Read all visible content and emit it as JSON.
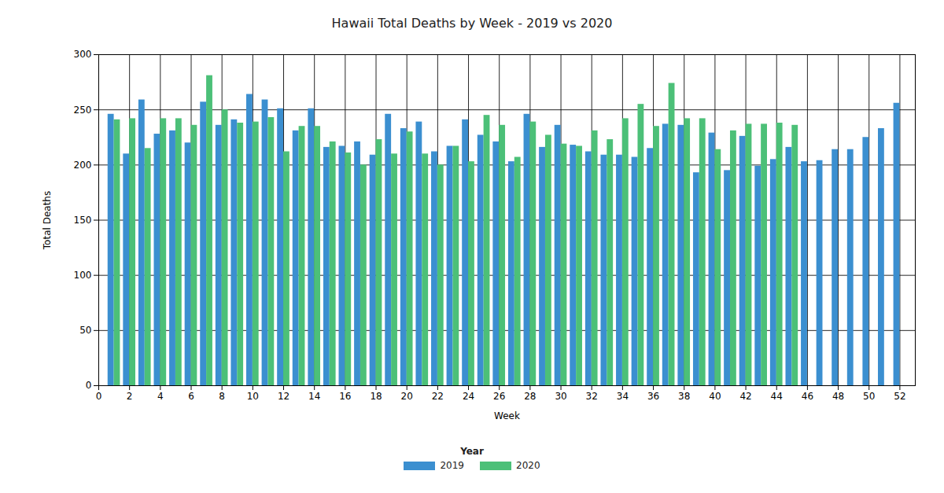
{
  "chart_data": {
    "type": "bar",
    "title": "Hawaii Total Deaths by Week - 2019 vs 2020",
    "x_label": "Week",
    "y_label": "Total Deaths",
    "x": [
      1,
      2,
      3,
      4,
      5,
      6,
      7,
      8,
      9,
      10,
      11,
      12,
      13,
      14,
      15,
      16,
      17,
      18,
      19,
      20,
      21,
      22,
      23,
      24,
      25,
      26,
      27,
      28,
      29,
      30,
      31,
      32,
      33,
      34,
      35,
      36,
      37,
      38,
      39,
      40,
      41,
      42,
      43,
      44,
      45,
      46,
      47,
      48,
      49,
      50,
      51,
      52
    ],
    "series": [
      {
        "name": "2019",
        "color": "#3b8fd0",
        "values": [
          246,
          210,
          259,
          228,
          231,
          220,
          257,
          236,
          241,
          264,
          259,
          251,
          231,
          251,
          216,
          217,
          221,
          209,
          246,
          233,
          239,
          212,
          217,
          241,
          227,
          221,
          203,
          246,
          216,
          236,
          218,
          212,
          209,
          209,
          207,
          215,
          237,
          236,
          193,
          229,
          195,
          226,
          199,
          205,
          216,
          203,
          204,
          214,
          214,
          225,
          233,
          256
        ]
      },
      {
        "name": "2020",
        "color": "#4cc078",
        "values": [
          241,
          242,
          215,
          242,
          242,
          236,
          281,
          250,
          238,
          239,
          243,
          212,
          235,
          235,
          221,
          211,
          200,
          223,
          210,
          230,
          210,
          200,
          217,
          203,
          245,
          236,
          207,
          239,
          227,
          219,
          217,
          231,
          223,
          242,
          255,
          235,
          274,
          242,
          242,
          214,
          231,
          237,
          237,
          238,
          236,
          null,
          null,
          null,
          null,
          null,
          null,
          null
        ]
      }
    ],
    "xlim": [
      0,
      53
    ],
    "xticks": [
      0,
      2,
      4,
      6,
      8,
      10,
      12,
      14,
      16,
      18,
      20,
      22,
      24,
      26,
      28,
      30,
      32,
      34,
      36,
      38,
      40,
      42,
      44,
      46,
      48,
      50,
      52
    ],
    "ylim": [
      0,
      300
    ],
    "yticks": [
      0,
      50,
      100,
      150,
      200,
      250,
      300
    ],
    "grid": true,
    "legend": "bottom",
    "legend_title": "Year"
  }
}
